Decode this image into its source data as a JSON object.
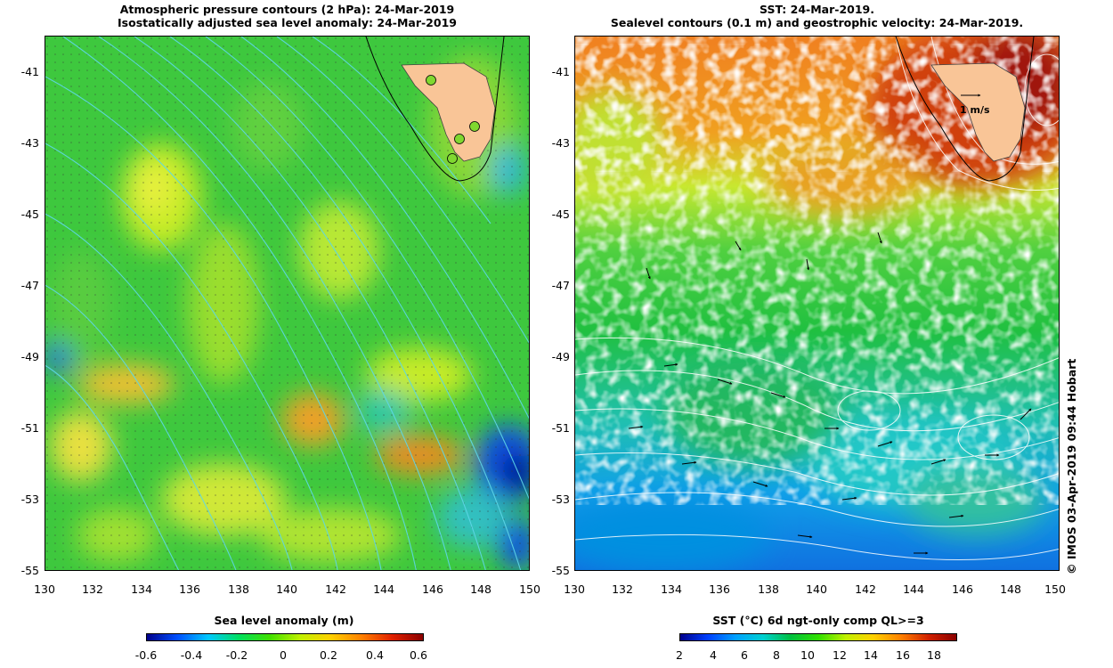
{
  "left_panel": {
    "title_line1": "Atmospheric pressure contours (2 hPa): 24-Mar-2019",
    "title_line2": "Isostatically adjusted sea level anomaly: 24-Mar-2019",
    "colorbar": {
      "label": "Sea level anomaly (m)",
      "ticks": [
        "-0.6",
        "-0.4",
        "-0.2",
        "0",
        "0.2",
        "0.4",
        "0.6"
      ],
      "colors": [
        "#00008b",
        "#0050ff",
        "#00c8ff",
        "#00e060",
        "#40e000",
        "#c0f000",
        "#ffd000",
        "#ff8000",
        "#e02000",
        "#8b0000"
      ]
    }
  },
  "right_panel": {
    "title_line1": "SST: 24-Mar-2019.",
    "title_line2": "Sealevel contours (0.1 m) and geostrophic velocity: 24-Mar-2019.",
    "scale_label": "1 m/s",
    "colorbar": {
      "label": "SST (°C) 6d ngt-only comp QL>=3",
      "ticks": [
        "2",
        "4",
        "6",
        "8",
        "10",
        "12",
        "14",
        "16",
        "18"
      ],
      "colors": [
        "#00008b",
        "#0040ff",
        "#00a0ff",
        "#00d0d0",
        "#00c040",
        "#30e000",
        "#c0f000",
        "#ffd000",
        "#ff8000",
        "#d02000",
        "#8b0000"
      ]
    }
  },
  "axes": {
    "lat_ticks": [
      "-41",
      "-43",
      "-45",
      "-47",
      "-49",
      "-51",
      "-53",
      "-55"
    ],
    "lon_ticks": [
      "130",
      "132",
      "134",
      "136",
      "138",
      "140",
      "142",
      "144",
      "146",
      "148",
      "150"
    ]
  },
  "credit": "© IMOS 03-Apr-2019 09:44 Hobart",
  "colors": {
    "land": "#f9c597",
    "contour_left": "#5fd7e8",
    "contour_right": "#ffffff"
  }
}
